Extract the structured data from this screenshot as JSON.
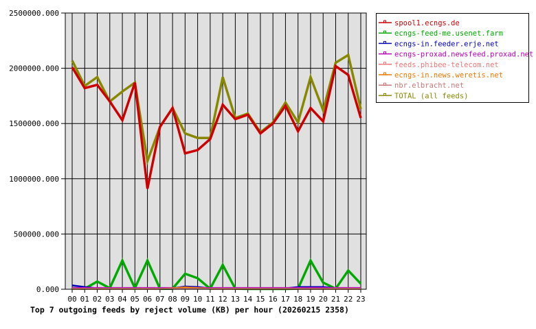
{
  "chart_data": {
    "type": "line",
    "title": "Top 7 outgoing feeds by reject volume (KB) per hour (20260215 2358)",
    "xlabel": "",
    "ylabel": "",
    "ylim": [
      0,
      2500000
    ],
    "grid": true,
    "legend_position": "right",
    "y_ticks": [
      "0.000",
      "500000.000",
      "1000000.000",
      "1500000.000",
      "2000000.000",
      "2500000.000"
    ],
    "y_tick_values": [
      0,
      500000,
      1000000,
      1500000,
      2000000,
      2500000
    ],
    "categories": [
      "00",
      "01",
      "02",
      "03",
      "04",
      "05",
      "06",
      "07",
      "08",
      "09",
      "10",
      "11",
      "12",
      "13",
      "14",
      "15",
      "16",
      "17",
      "18",
      "19",
      "20",
      "21",
      "22",
      "23"
    ],
    "series": [
      {
        "name": "spool1.ecngs.de",
        "color": "#cc0000",
        "values": [
          2010000,
          1820000,
          1850000,
          1700000,
          1530000,
          1870000,
          910000,
          1470000,
          1640000,
          1230000,
          1260000,
          1360000,
          1670000,
          1540000,
          1580000,
          1410000,
          1500000,
          1660000,
          1430000,
          1640000,
          1520000,
          2020000,
          1940000,
          1550000
        ]
      },
      {
        "name": "ecngs-feed-me.usenet.farm",
        "color": "#00aa00",
        "values": [
          10000,
          5000,
          70000,
          10000,
          260000,
          10000,
          260000,
          5000,
          5000,
          140000,
          100000,
          5000,
          220000,
          5000,
          3000,
          3000,
          3000,
          3000,
          5000,
          260000,
          60000,
          5000,
          170000,
          50000
        ]
      },
      {
        "name": "ecngs-in.feeder.erje.net",
        "color": "#0000bb",
        "values": [
          35000,
          20000,
          8000,
          8000,
          8000,
          8000,
          8000,
          8000,
          8000,
          25000,
          20000,
          8000,
          8000,
          8000,
          8000,
          8000,
          8000,
          8000,
          20000,
          20000,
          20000,
          10000,
          8000,
          8000
        ]
      },
      {
        "name": "ecngs-proxad.newsfeed.proxad.net",
        "color": "#bb00bb",
        "values": [
          12000,
          12000,
          12000,
          12000,
          12000,
          12000,
          12000,
          12000,
          12000,
          12000,
          12000,
          12000,
          12000,
          12000,
          12000,
          12000,
          12000,
          12000,
          12000,
          12000,
          12000,
          12000,
          12000,
          12000
        ]
      },
      {
        "name": "feeds.phibee-telecom.net",
        "color": "#ee7777",
        "values": [
          5000,
          5000,
          5000,
          5000,
          5000,
          5000,
          5000,
          5000,
          5000,
          5000,
          5000,
          5000,
          5000,
          5000,
          5000,
          5000,
          5000,
          5000,
          5000,
          5000,
          5000,
          5000,
          5000,
          5000
        ]
      },
      {
        "name": "ecngs-in.news.weretis.net",
        "color": "#ee7700",
        "values": [
          3000,
          3000,
          3000,
          3000,
          3000,
          3000,
          3000,
          3000,
          8000,
          18000,
          12000,
          3000,
          3000,
          3000,
          3000,
          3000,
          3000,
          3000,
          3000,
          3000,
          3000,
          3000,
          3000,
          3000
        ]
      },
      {
        "name": "nbr.elbracht.net",
        "color": "#cc7777",
        "values": [
          4000,
          4000,
          4000,
          4000,
          4000,
          4000,
          4000,
          4000,
          4000,
          4000,
          4000,
          4000,
          4000,
          4000,
          4000,
          4000,
          4000,
          4000,
          4000,
          4000,
          4000,
          4000,
          4000,
          4000
        ]
      },
      {
        "name": "TOTAL (all feeds)",
        "color": "#888800",
        "values": [
          2070000,
          1840000,
          1920000,
          1700000,
          1790000,
          1870000,
          1160000,
          1470000,
          1640000,
          1410000,
          1370000,
          1370000,
          1920000,
          1550000,
          1590000,
          1420000,
          1510000,
          1690000,
          1510000,
          1920000,
          1620000,
          2050000,
          2120000,
          1630000
        ]
      }
    ]
  },
  "legend": {
    "items": [
      {
        "label": "spool1.ecngs.de",
        "color": "#cc0000"
      },
      {
        "label": "ecngs-feed-me.usenet.farm",
        "color": "#00aa00"
      },
      {
        "label": "ecngs-in.feeder.erje.net",
        "color": "#0000bb"
      },
      {
        "label": "ecngs-proxad.newsfeed.proxad.net",
        "color": "#bb00bb"
      },
      {
        "label": "feeds.phibee-telecom.net",
        "color": "#ee7777"
      },
      {
        "label": "ecngs-in.news.weretis.net",
        "color": "#ee7700"
      },
      {
        "label": "nbr.elbracht.net",
        "color": "#cc7777"
      },
      {
        "label": "TOTAL (all feeds)",
        "color": "#888800"
      }
    ]
  },
  "colors": {
    "plot_background": "#e0e0e0",
    "grid": "#000000",
    "page_background": "#ffffff"
  }
}
